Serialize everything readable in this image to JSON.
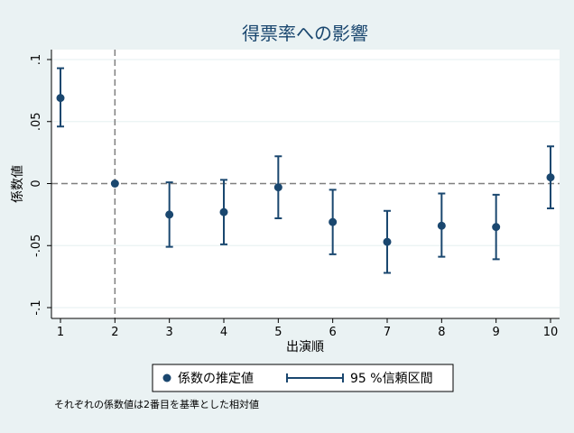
{
  "chart_data": {
    "type": "scatter",
    "title": "得票率への影響",
    "xlabel": "出演順",
    "ylabel": "係数値",
    "x_ticks": [
      "1",
      "2",
      "3",
      "4",
      "5",
      "6",
      "7",
      "8",
      "9",
      "10"
    ],
    "y_ticks": [
      ".1",
      ".05",
      "0",
      "-.05",
      "-.1"
    ],
    "y_tick_values": [
      0.1,
      0.05,
      0,
      -0.05,
      -0.1
    ],
    "xlim": [
      1,
      10
    ],
    "ylim": [
      -0.1,
      0.1
    ],
    "reference_lines": {
      "x": 2,
      "y": 0
    },
    "series": [
      {
        "name": "係数の推定値",
        "x": [
          1,
          2,
          3,
          4,
          5,
          6,
          7,
          8,
          9,
          10
        ],
        "y": [
          0.069,
          0.0,
          -0.025,
          -0.023,
          -0.003,
          -0.031,
          -0.047,
          -0.034,
          -0.035,
          0.005
        ]
      },
      {
        "name": "95 %信頼区間",
        "x": [
          1,
          2,
          3,
          4,
          5,
          6,
          7,
          8,
          9,
          10
        ],
        "lower": [
          0.046,
          0.0,
          -0.051,
          -0.049,
          -0.028,
          -0.057,
          -0.072,
          -0.059,
          -0.061,
          -0.02
        ],
        "upper": [
          0.093,
          0.0,
          0.001,
          0.003,
          0.022,
          -0.005,
          -0.022,
          -0.008,
          -0.009,
          0.03
        ]
      }
    ],
    "grid": "horizontal",
    "legend_position": "bottom",
    "note": "それぞれの係数値は2番目を基準とした相対値",
    "colors": {
      "marker": "#1a476f",
      "background": "#eaf2f3",
      "plot_bg": "#ffffff",
      "reference": "#7f7f7f",
      "grid": "#eaf2f3"
    }
  }
}
